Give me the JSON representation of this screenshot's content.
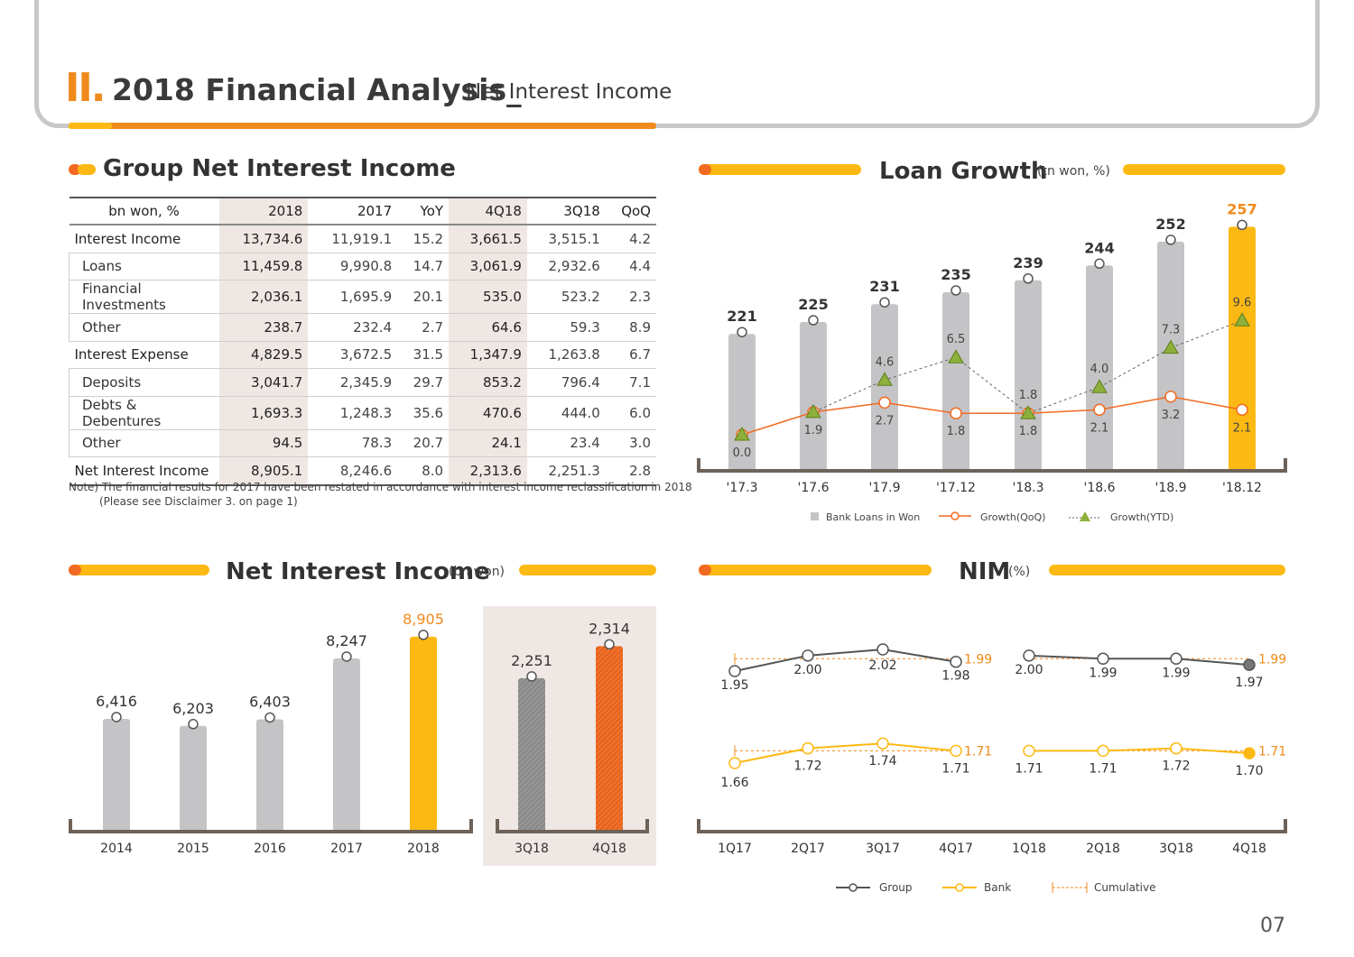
{
  "header": {
    "roman": "II.",
    "title": "2018 Financial Analysis_",
    "subtitle": "Net Interest Income"
  },
  "colors": {
    "orange": "#f26a21",
    "yellow": "#fdb913",
    "gray_bar": "#c4c4c6",
    "dark_line": "#555555",
    "green": "#8db03a",
    "beige": "#efe7e3"
  },
  "table_section": {
    "title": "Group Net Interest Income",
    "columns": [
      "bn won, %",
      "2018",
      "2017",
      "YoY",
      "4Q18",
      "3Q18",
      "QoQ"
    ],
    "rows": [
      {
        "label": "Interest Income",
        "indent": false,
        "values": [
          "13,734.6",
          "11,919.1",
          "15.2",
          "3,661.5",
          "3,515.1",
          "4.2"
        ]
      },
      {
        "label": "Loans",
        "indent": true,
        "values": [
          "11,459.8",
          "9,990.8",
          "14.7",
          "3,061.9",
          "2,932.6",
          "4.4"
        ]
      },
      {
        "label": "Financial Investments",
        "indent": true,
        "values": [
          "2,036.1",
          "1,695.9",
          "20.1",
          "535.0",
          "523.2",
          "2.3"
        ]
      },
      {
        "label": "Other",
        "indent": true,
        "values": [
          "238.7",
          "232.4",
          "2.7",
          "64.6",
          "59.3",
          "8.9"
        ]
      },
      {
        "label": "Interest Expense",
        "indent": false,
        "values": [
          "4,829.5",
          "3,672.5",
          "31.5",
          "1,347.9",
          "1,263.8",
          "6.7"
        ]
      },
      {
        "label": "Deposits",
        "indent": true,
        "values": [
          "3,041.7",
          "2,345.9",
          "29.7",
          "853.2",
          "796.4",
          "7.1"
        ]
      },
      {
        "label": "Debts & Debentures",
        "indent": true,
        "values": [
          "1,693.3",
          "1,248.3",
          "35.6",
          "470.6",
          "444.0",
          "6.0"
        ]
      },
      {
        "label": "Other",
        "indent": true,
        "values": [
          "94.5",
          "78.3",
          "20.7",
          "24.1",
          "23.4",
          "3.0"
        ]
      },
      {
        "label": "Net Interest Income",
        "indent": false,
        "values": [
          "8,905.1",
          "8,246.6",
          "8.0",
          "2,313.6",
          "2,251.3",
          "2.8"
        ]
      }
    ],
    "note_line1": "Note) The financial results for 2017 have been restated in accordance with interest income reclassification in 2018",
    "note_line2": "(Please see Disclaimer 3. on page 1)"
  },
  "chart_data": [
    {
      "id": "loan_growth",
      "type": "bar",
      "title": "Loan Growth",
      "unit": "(tn won, %)",
      "categories": [
        "'17.3",
        "'17.6",
        "'17.9",
        "'17.12",
        "'18.3",
        "'18.6",
        "'18.9",
        "'18.12"
      ],
      "series": [
        {
          "name": "Bank Loans in Won",
          "values": [
            221,
            225,
            231,
            235,
            239,
            244,
            252,
            257
          ],
          "labels": [
            "221",
            "225",
            "231",
            "235",
            "239",
            "244",
            "252",
            "257"
          ]
        },
        {
          "name": "Growth(QoQ)",
          "values": [
            0.0,
            1.9,
            2.7,
            1.8,
            1.8,
            2.1,
            3.2,
            2.1
          ],
          "labels": [
            "0.0",
            "1.9",
            "2.7",
            "1.8",
            "1.8",
            "2.1",
            "3.2",
            "2.1"
          ]
        },
        {
          "name": "Growth(YTD)",
          "values": [
            0.0,
            1.9,
            4.6,
            6.5,
            1.8,
            4.0,
            7.3,
            9.6
          ],
          "labels": [
            "",
            "",
            "4.6",
            "6.5",
            "1.8",
            "4.0",
            "7.3",
            "9.6"
          ]
        }
      ],
      "highlight_last": true
    },
    {
      "id": "net_interest_income",
      "type": "bar",
      "title": "Net Interest Income",
      "unit": "(bn won)",
      "categories": [
        "2014",
        "2015",
        "2016",
        "2017",
        "2018"
      ],
      "values": [
        6416,
        6203,
        6403,
        8247,
        8905
      ],
      "labels": [
        "6,416",
        "6,203",
        "6,403",
        "8,247",
        "8,905"
      ],
      "quarterly": {
        "categories": [
          "3Q18",
          "4Q18"
        ],
        "values": [
          2251,
          2314
        ],
        "labels": [
          "2,251",
          "2,314"
        ]
      }
    },
    {
      "id": "nim",
      "type": "line",
      "title": "NIM",
      "unit": "(%)",
      "categories": [
        "1Q17",
        "2Q17",
        "3Q17",
        "4Q17",
        "1Q18",
        "2Q18",
        "3Q18",
        "4Q18"
      ],
      "series": [
        {
          "name": "Group",
          "values": [
            1.95,
            2.0,
            2.02,
            1.98,
            2.0,
            1.99,
            1.99,
            1.97
          ],
          "labels": [
            "1.95",
            "2.00",
            "2.02",
            "1.98",
            "2.00",
            "1.99",
            "1.99",
            "1.97"
          ]
        },
        {
          "name": "Bank",
          "values": [
            1.66,
            1.72,
            1.74,
            1.71,
            1.71,
            1.71,
            1.72,
            1.7
          ],
          "labels": [
            "1.66",
            "1.72",
            "1.74",
            "1.71",
            "1.71",
            "1.71",
            "1.72",
            "1.70"
          ]
        }
      ],
      "cumulative": {
        "name": "Cumulative",
        "group_2017": "1.99",
        "group_2018": "1.99",
        "bank_2017": "1.71",
        "bank_2018": "1.71"
      }
    }
  ],
  "legend_loan": [
    "Bank Loans in Won",
    "Growth(QoQ)",
    "Growth(YTD)"
  ],
  "legend_nim": [
    "Group",
    "Bank",
    "Cumulative"
  ],
  "page_number": "07"
}
